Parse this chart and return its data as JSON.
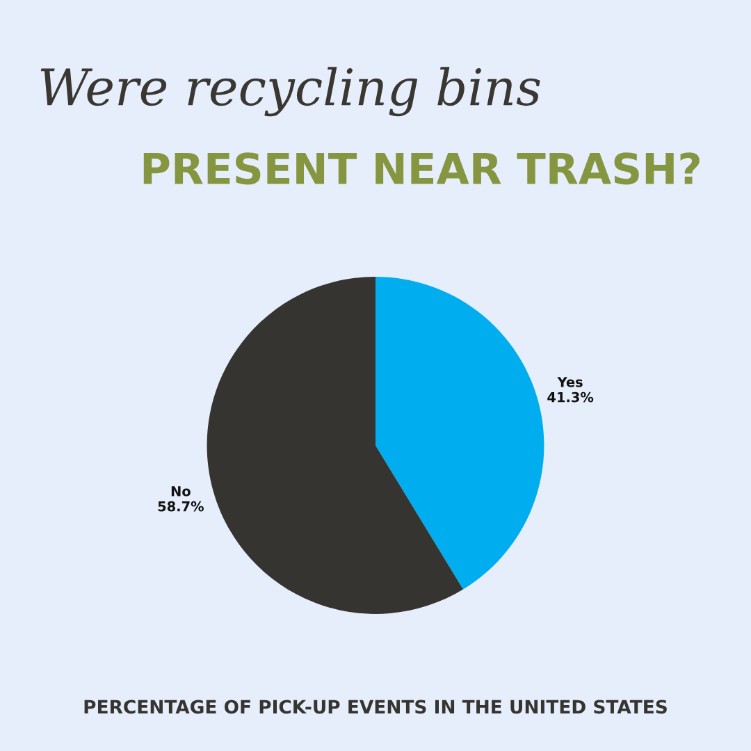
{
  "chart_data": {
    "type": "pie",
    "title": "Were recycling bins",
    "subtitle": "PRESENT NEAR TRASH?",
    "annotations": [
      "PERCENTAGE OF PICK-UP EVENTS IN THE UNITED STATES"
    ],
    "categories": [
      "Yes",
      "No"
    ],
    "values": [
      41.3,
      58.7
    ],
    "colors": [
      "#00aeef",
      "#363430"
    ],
    "value_labels": [
      "41.3%",
      "58.7%"
    ]
  }
}
